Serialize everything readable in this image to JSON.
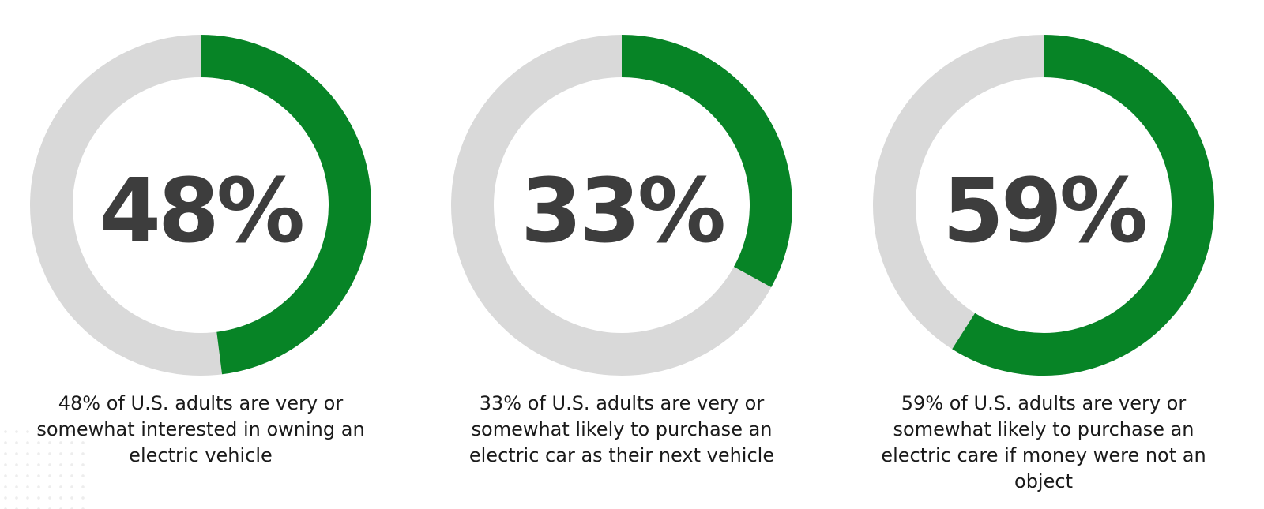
{
  "chart_data": [
    {
      "type": "pie",
      "value": 48,
      "label": "48%",
      "caption": "48% of U.S. adults are very or somewhat interested in owning an electric vehicle"
    },
    {
      "type": "pie",
      "value": 33,
      "label": "33%",
      "caption": "33% of U.S. adults are very or somewhat likely to purchase an electric car as their next vehicle"
    },
    {
      "type": "pie",
      "value": 59,
      "label": "59%",
      "caption": "59% of U.S. adults are very or somewhat likely to purchase an electric care if money were not an object"
    }
  ],
  "colors": {
    "fill": "#078426",
    "track": "#d9d9d9",
    "number": "#3d3d3d",
    "caption": "#1a1a1a"
  }
}
